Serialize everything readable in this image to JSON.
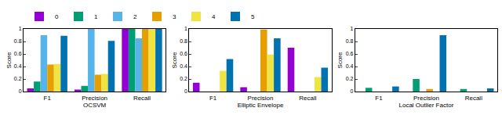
{
  "chart_data": [
    {
      "type": "bar",
      "x_label": "OCSVM",
      "y_label": "Score",
      "categories": [
        "F1",
        "Precision",
        "Recall"
      ],
      "series": [
        {
          "name": "0",
          "color": "#9400d3",
          "values": [
            0.05,
            0.03,
            1.0
          ]
        },
        {
          "name": "1",
          "color": "#009e73",
          "values": [
            0.16,
            0.09,
            1.0
          ]
        },
        {
          "name": "2",
          "color": "#56b4e9",
          "values": [
            0.9,
            1.0,
            0.85
          ]
        },
        {
          "name": "3",
          "color": "#e69f00",
          "values": [
            0.43,
            0.27,
            1.0
          ]
        },
        {
          "name": "4",
          "color": "#f0e442",
          "values": [
            0.44,
            0.28,
            1.0
          ]
        },
        {
          "name": "5",
          "color": "#0072b2",
          "values": [
            0.89,
            0.81,
            1.0
          ]
        }
      ],
      "ylim": [
        0,
        1
      ],
      "yticks": [
        0,
        0.2,
        0.4,
        0.6,
        0.8,
        1
      ]
    },
    {
      "type": "bar",
      "x_label": "Elliptic Envelope",
      "y_label": "Score",
      "categories": [
        "F1",
        "Precision",
        "Recall"
      ],
      "series": [
        {
          "name": "0",
          "color": "#9400d3",
          "values": [
            0.14,
            0.07,
            0.7
          ]
        },
        {
          "name": "1",
          "color": "#009e73",
          "values": [
            0,
            0,
            0
          ]
        },
        {
          "name": "2",
          "color": "#56b4e9",
          "values": [
            0,
            0,
            0
          ]
        },
        {
          "name": "3",
          "color": "#e69f00",
          "values": [
            0,
            0.99,
            0
          ]
        },
        {
          "name": "4",
          "color": "#f0e442",
          "values": [
            0.33,
            0.59,
            0.23
          ]
        },
        {
          "name": "5",
          "color": "#0072b2",
          "values": [
            0.52,
            0.85,
            0.38
          ]
        }
      ],
      "ylim": [
        0,
        1
      ],
      "yticks": [
        0,
        0.2,
        0.4,
        0.6,
        0.8,
        1
      ]
    },
    {
      "type": "bar",
      "x_label": "Local Outlier Factor",
      "y_label": "Score",
      "categories": [
        "F1",
        "Precision",
        "Recall"
      ],
      "series": [
        {
          "name": "0",
          "color": "#9400d3",
          "values": [
            0,
            0,
            0
          ]
        },
        {
          "name": "1",
          "color": "#009e73",
          "values": [
            0.06,
            0.2,
            0.04
          ]
        },
        {
          "name": "2",
          "color": "#56b4e9",
          "values": [
            0,
            0,
            0
          ]
        },
        {
          "name": "3",
          "color": "#e69f00",
          "values": [
            0,
            0.04,
            0
          ]
        },
        {
          "name": "4",
          "color": "#f0e442",
          "values": [
            0,
            0,
            0
          ]
        },
        {
          "name": "5",
          "color": "#0072b2",
          "values": [
            0.08,
            0.9,
            0.05
          ]
        }
      ],
      "ylim": [
        0,
        1
      ],
      "yticks": [
        0,
        0.2,
        0.4,
        0.6,
        0.8,
        1
      ]
    }
  ]
}
